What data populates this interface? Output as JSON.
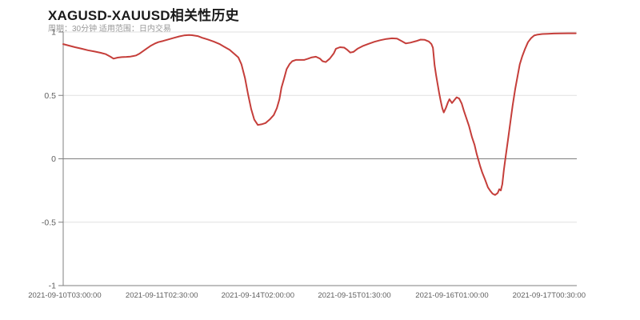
{
  "header": {
    "title": "XAGUSD-XAUUSD相关性历史",
    "subtitle": "周期：30分钟 适用范围：日内交易"
  },
  "chart_data": {
    "type": "line",
    "title": "XAGUSD-XAUUSD相关性历史",
    "subtitle": "周期：30分钟 适用范围：日内交易",
    "xlabel": "",
    "ylabel": "",
    "ylim": [
      -1,
      1
    ],
    "grid": true,
    "legend_position": "none",
    "colors": {
      "line": "#c53e3a",
      "grid_light": "#e0e0e0",
      "axis": "#7f7f7f",
      "tick_text": "#5f5f5f",
      "title_text": "#1a1a1a",
      "subtitle_text": "#989898"
    },
    "y_ticks": [
      {
        "label": "1",
        "value": 1
      },
      {
        "label": "0.5",
        "value": 0.5
      },
      {
        "label": "0",
        "value": 0
      },
      {
        "label": "-0.5",
        "value": -0.5
      },
      {
        "label": "-1",
        "value": -1
      }
    ],
    "x_ticks": [
      {
        "label": "2021-09-10T03:00:00",
        "pos": 0.003
      },
      {
        "label": "2021-09-11T02:30:00",
        "pos": 0.192
      },
      {
        "label": "2021-09-14T02:00:00",
        "pos": 0.379
      },
      {
        "label": "2021-09-15T01:30:00",
        "pos": 0.567
      },
      {
        "label": "2021-09-16T01:00:00",
        "pos": 0.757
      },
      {
        "label": "2021-09-17T00:30:00",
        "pos": 0.946
      }
    ],
    "series": [
      {
        "name": "XAGUSD-XAUUSD correlation",
        "color": "#c53e3a",
        "points": [
          [
            0.0,
            0.905
          ],
          [
            0.011,
            0.893
          ],
          [
            0.023,
            0.88
          ],
          [
            0.036,
            0.868
          ],
          [
            0.048,
            0.856
          ],
          [
            0.061,
            0.846
          ],
          [
            0.073,
            0.836
          ],
          [
            0.083,
            0.825
          ],
          [
            0.092,
            0.805
          ],
          [
            0.098,
            0.79
          ],
          [
            0.106,
            0.798
          ],
          [
            0.114,
            0.802
          ],
          [
            0.123,
            0.804
          ],
          [
            0.131,
            0.806
          ],
          [
            0.136,
            0.81
          ],
          [
            0.142,
            0.815
          ],
          [
            0.148,
            0.828
          ],
          [
            0.154,
            0.845
          ],
          [
            0.162,
            0.868
          ],
          [
            0.17,
            0.89
          ],
          [
            0.178,
            0.908
          ],
          [
            0.185,
            0.92
          ],
          [
            0.195,
            0.93
          ],
          [
            0.204,
            0.941
          ],
          [
            0.215,
            0.953
          ],
          [
            0.226,
            0.965
          ],
          [
            0.235,
            0.973
          ],
          [
            0.245,
            0.976
          ],
          [
            0.251,
            0.975
          ],
          [
            0.262,
            0.968
          ],
          [
            0.271,
            0.954
          ],
          [
            0.282,
            0.941
          ],
          [
            0.293,
            0.925
          ],
          [
            0.304,
            0.906
          ],
          [
            0.313,
            0.885
          ],
          [
            0.324,
            0.86
          ],
          [
            0.333,
            0.828
          ],
          [
            0.341,
            0.8
          ],
          [
            0.347,
            0.745
          ],
          [
            0.354,
            0.635
          ],
          [
            0.36,
            0.508
          ],
          [
            0.366,
            0.392
          ],
          [
            0.372,
            0.31
          ],
          [
            0.379,
            0.267
          ],
          [
            0.386,
            0.272
          ],
          [
            0.394,
            0.282
          ],
          [
            0.402,
            0.31
          ],
          [
            0.41,
            0.345
          ],
          [
            0.416,
            0.4
          ],
          [
            0.421,
            0.47
          ],
          [
            0.425,
            0.56
          ],
          [
            0.43,
            0.633
          ],
          [
            0.435,
            0.707
          ],
          [
            0.441,
            0.748
          ],
          [
            0.446,
            0.77
          ],
          [
            0.453,
            0.78
          ],
          [
            0.461,
            0.78
          ],
          [
            0.469,
            0.78
          ],
          [
            0.477,
            0.79
          ],
          [
            0.484,
            0.8
          ],
          [
            0.492,
            0.805
          ],
          [
            0.5,
            0.79
          ],
          [
            0.505,
            0.77
          ],
          [
            0.511,
            0.763
          ],
          [
            0.519,
            0.79
          ],
          [
            0.527,
            0.832
          ],
          [
            0.531,
            0.868
          ],
          [
            0.539,
            0.88
          ],
          [
            0.547,
            0.877
          ],
          [
            0.553,
            0.86
          ],
          [
            0.559,
            0.838
          ],
          [
            0.565,
            0.843
          ],
          [
            0.573,
            0.868
          ],
          [
            0.583,
            0.889
          ],
          [
            0.594,
            0.906
          ],
          [
            0.606,
            0.923
          ],
          [
            0.617,
            0.935
          ],
          [
            0.629,
            0.945
          ],
          [
            0.64,
            0.95
          ],
          [
            0.65,
            0.948
          ],
          [
            0.659,
            0.928
          ],
          [
            0.667,
            0.91
          ],
          [
            0.676,
            0.916
          ],
          [
            0.687,
            0.928
          ],
          [
            0.696,
            0.94
          ],
          [
            0.704,
            0.938
          ],
          [
            0.712,
            0.925
          ],
          [
            0.717,
            0.905
          ],
          [
            0.72,
            0.875
          ],
          [
            0.723,
            0.74
          ],
          [
            0.726,
            0.66
          ],
          [
            0.729,
            0.59
          ],
          [
            0.732,
            0.52
          ],
          [
            0.735,
            0.455
          ],
          [
            0.738,
            0.4
          ],
          [
            0.741,
            0.365
          ],
          [
            0.745,
            0.4
          ],
          [
            0.749,
            0.445
          ],
          [
            0.752,
            0.47
          ],
          [
            0.757,
            0.44
          ],
          [
            0.762,
            0.465
          ],
          [
            0.766,
            0.485
          ],
          [
            0.771,
            0.475
          ],
          [
            0.776,
            0.435
          ],
          [
            0.78,
            0.38
          ],
          [
            0.785,
            0.32
          ],
          [
            0.79,
            0.26
          ],
          [
            0.796,
            0.17
          ],
          [
            0.801,
            0.11
          ],
          [
            0.805,
            0.04
          ],
          [
            0.812,
            -0.06
          ],
          [
            0.816,
            -0.11
          ],
          [
            0.821,
            -0.16
          ],
          [
            0.827,
            -0.225
          ],
          [
            0.832,
            -0.255
          ],
          [
            0.836,
            -0.275
          ],
          [
            0.841,
            -0.285
          ],
          [
            0.846,
            -0.27
          ],
          [
            0.849,
            -0.24
          ],
          [
            0.852,
            -0.25
          ],
          [
            0.855,
            -0.2
          ],
          [
            0.858,
            -0.09
          ],
          [
            0.861,
            0.005
          ],
          [
            0.866,
            0.15
          ],
          [
            0.871,
            0.3
          ],
          [
            0.875,
            0.42
          ],
          [
            0.88,
            0.55
          ],
          [
            0.885,
            0.66
          ],
          [
            0.889,
            0.745
          ],
          [
            0.894,
            0.81
          ],
          [
            0.899,
            0.865
          ],
          [
            0.905,
            0.92
          ],
          [
            0.911,
            0.952
          ],
          [
            0.917,
            0.972
          ],
          [
            0.924,
            0.98
          ],
          [
            0.933,
            0.984
          ],
          [
            0.944,
            0.986
          ],
          [
            0.955,
            0.988
          ],
          [
            0.967,
            0.989
          ],
          [
            0.983,
            0.99
          ],
          [
            0.998,
            0.99
          ]
        ]
      }
    ]
  }
}
